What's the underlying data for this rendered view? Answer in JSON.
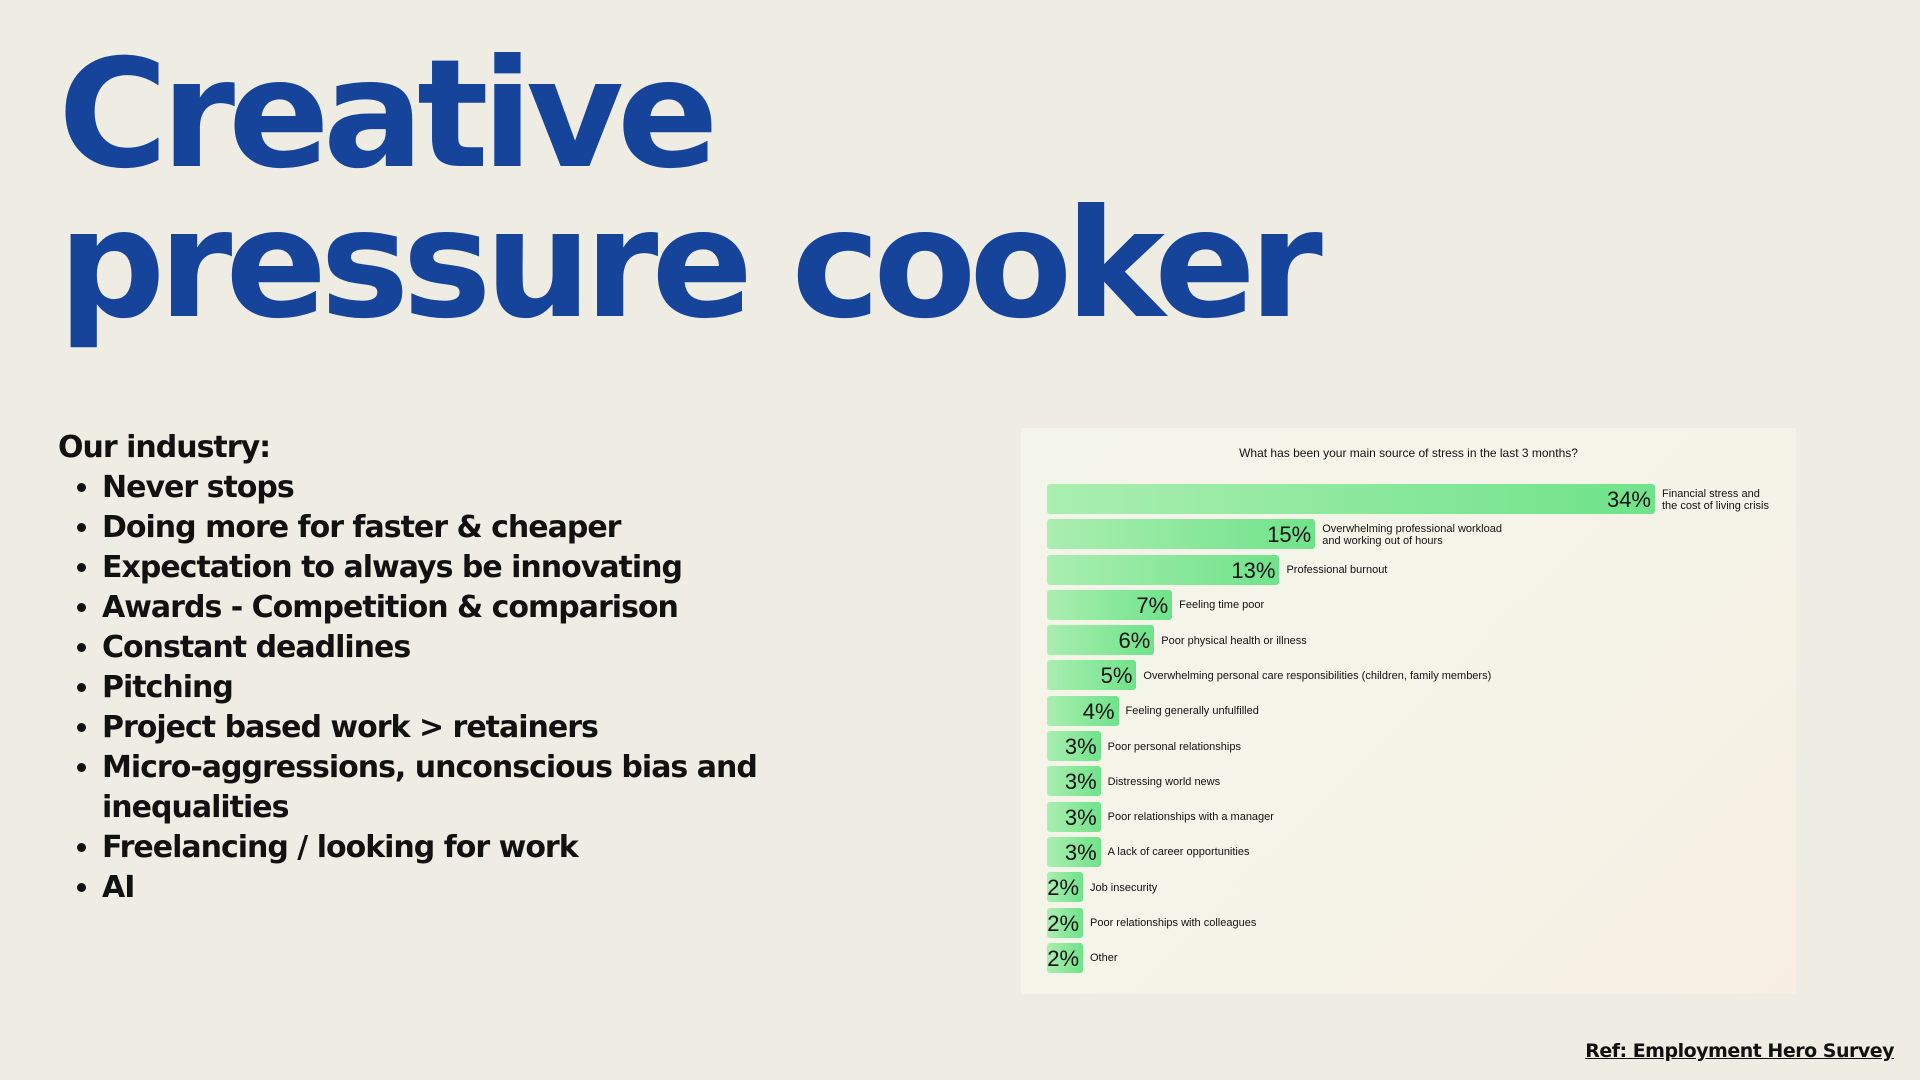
{
  "title": {
    "line1": "Creative",
    "line2": "pressure cooker"
  },
  "industry": {
    "heading": "Our industry:",
    "items": [
      "Never stops",
      "Doing more for faster & cheaper",
      "Expectation to always be innovating",
      "Awards - Competition & comparison",
      "Constant deadlines",
      "Pitching",
      "Project based work > retainers",
      "Micro-aggressions, unconscious bias and inequalities",
      "Freelancing / looking for work",
      "AI"
    ]
  },
  "chart_data": {
    "type": "bar",
    "orientation": "horizontal",
    "title": "What has been your main source of stress in the last 3 months?",
    "value_suffix": "%",
    "xlim": [
      0,
      34
    ],
    "categories": [
      "Financial stress and\nthe cost of living crisis",
      "Overwhelming professional workload\nand working out of hours",
      "Professional burnout",
      "Feeling time poor",
      "Poor physical health or illness",
      "Overwhelming personal care responsibilities (children, family members)",
      "Feeling generally unfulfilled",
      "Poor personal relationships",
      "Distressing world news",
      "Poor relationships with a manager",
      "A lack of career opportunities",
      "Job insecurity",
      "Poor relationships with colleagues",
      "Other"
    ],
    "values": [
      34,
      15,
      13,
      7,
      6,
      5,
      4,
      3,
      3,
      3,
      3,
      2,
      2,
      2
    ],
    "bar_color_start": "#aaeeb0",
    "bar_color_end": "#6fe38a"
  },
  "ref": "Ref: Employment Hero Survey"
}
